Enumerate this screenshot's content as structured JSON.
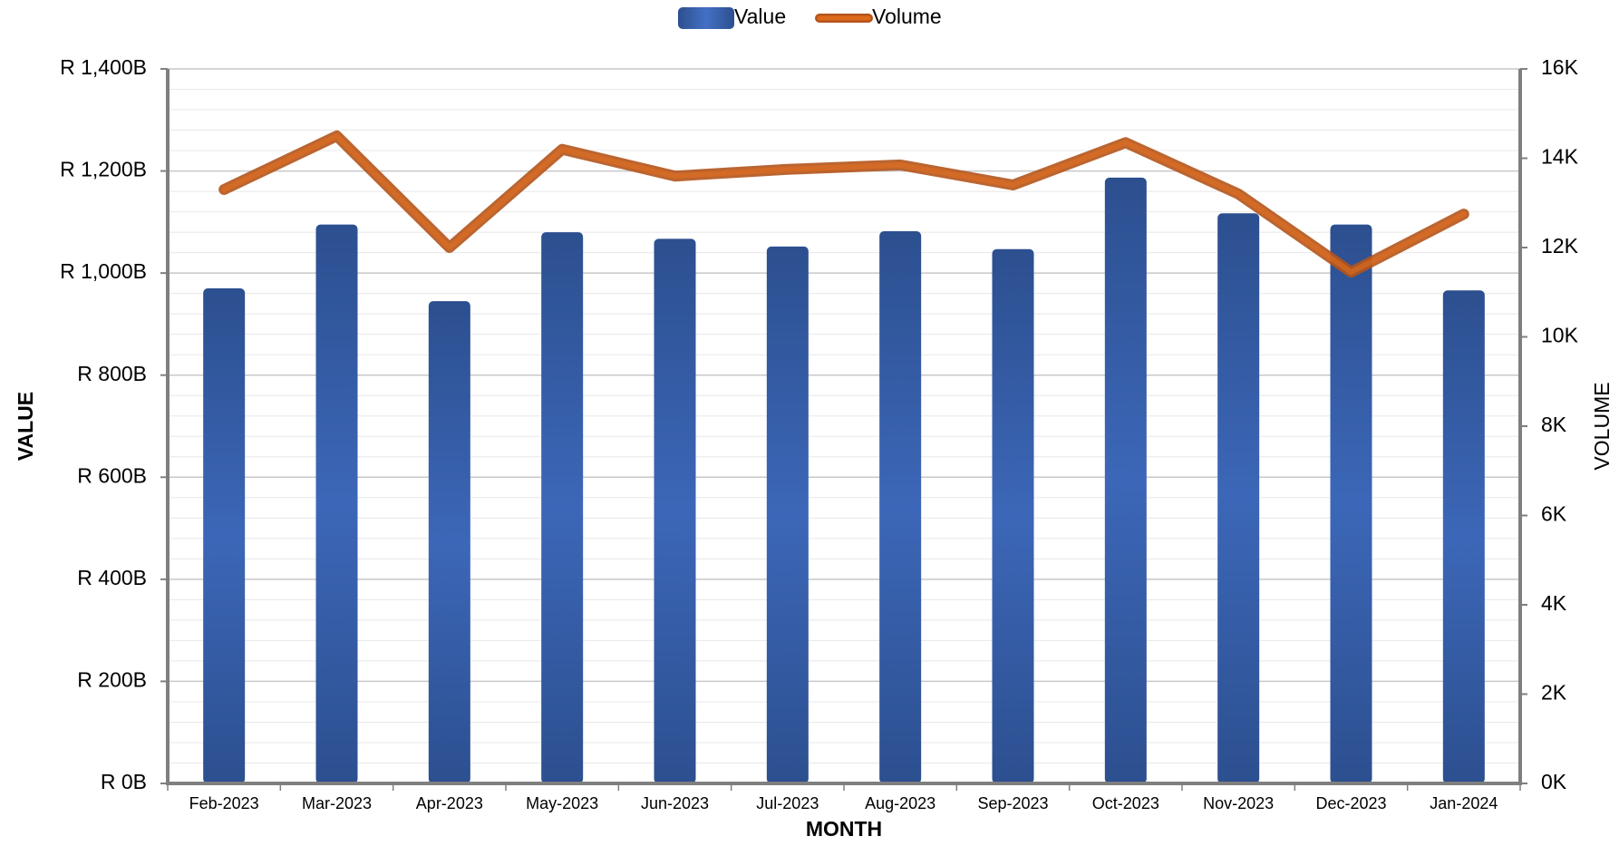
{
  "chart_data": {
    "type": "bar",
    "categories": [
      "Feb-2023",
      "Mar-2023",
      "Apr-2023",
      "May-2023",
      "Jun-2023",
      "Jul-2023",
      "Aug-2023",
      "Sep-2023",
      "Oct-2023",
      "Nov-2023",
      "Dec-2023",
      "Jan-2024"
    ],
    "series": [
      {
        "name": "Value",
        "type": "bar",
        "axis": "left",
        "color": "#3560b0",
        "values": [
          970,
          1095,
          945,
          1080,
          1067,
          1052,
          1082,
          1047,
          1187,
          1117,
          1095,
          966
        ]
      },
      {
        "name": "Volume",
        "type": "line",
        "axis": "right",
        "color": "#e8701c",
        "values": [
          13300,
          14500,
          12000,
          14200,
          13600,
          13750,
          13850,
          13400,
          14350,
          13200,
          11450,
          12750
        ]
      }
    ],
    "xlabel": "MONTH",
    "ylabel": "VALUE",
    "y2label": "VOLUME",
    "ylim": [
      0,
      1400
    ],
    "y2lim": [
      0,
      16000
    ],
    "yticks": [
      "R 0B",
      "R 200B",
      "R 400B",
      "R 600B",
      "R 800B",
      "R 1,000B",
      "R 1,200B",
      "R 1,400B"
    ],
    "y2ticks": [
      "0K",
      "2K",
      "4K",
      "6K",
      "8K",
      "10K",
      "12K",
      "14K",
      "16K"
    ],
    "grid": true,
    "legend": "top-center"
  }
}
